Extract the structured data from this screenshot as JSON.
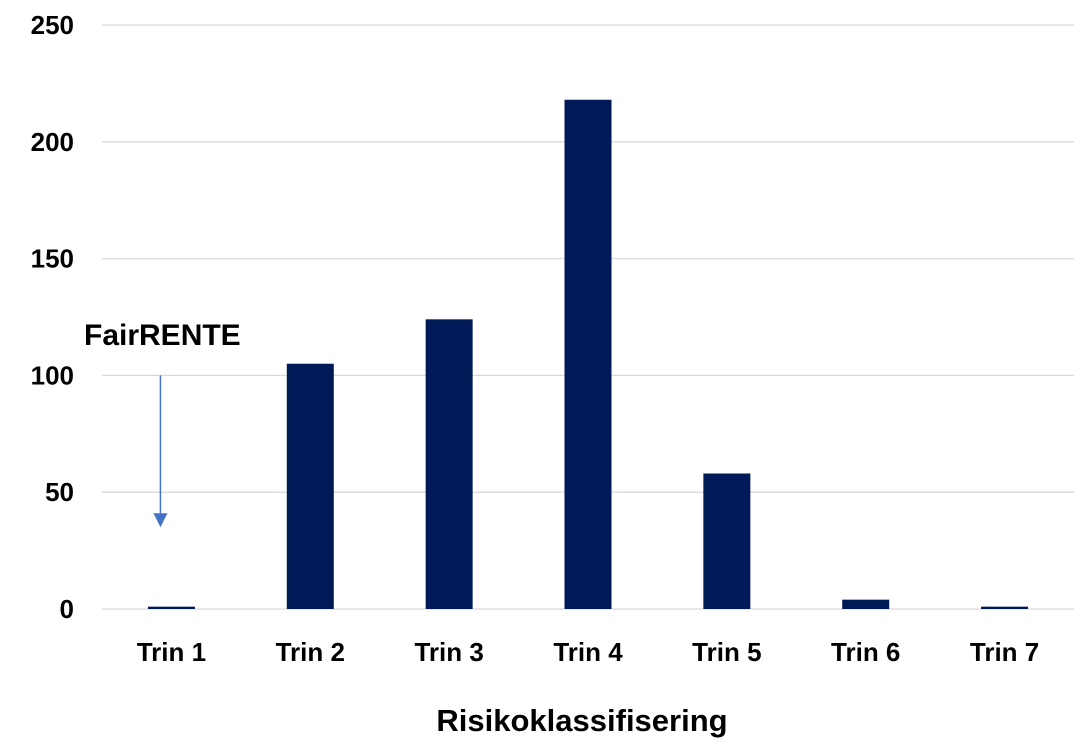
{
  "chart_data": {
    "type": "bar",
    "title": "",
    "xlabel": "Risikoklassifisering",
    "ylabel": "",
    "categories": [
      "Trin 1",
      "Trin 2",
      "Trin 3",
      "Trin 4",
      "Trin 5",
      "Trin 6",
      "Trin 7"
    ],
    "values": [
      1,
      105,
      124,
      218,
      58,
      4,
      1
    ],
    "ylim": [
      0,
      250
    ],
    "yticks": [
      "0",
      "50",
      "100",
      "150",
      "200",
      "250"
    ],
    "grid": true,
    "legend": "none",
    "bar_color": "#001a57",
    "grid_color": "#d9d9d9",
    "annotation": {
      "text": "FairRENTE",
      "target_category": "Trin 1",
      "arrow_color": "#4472c4",
      "arrow_from_value": 100,
      "arrow_to_value": 35
    }
  }
}
